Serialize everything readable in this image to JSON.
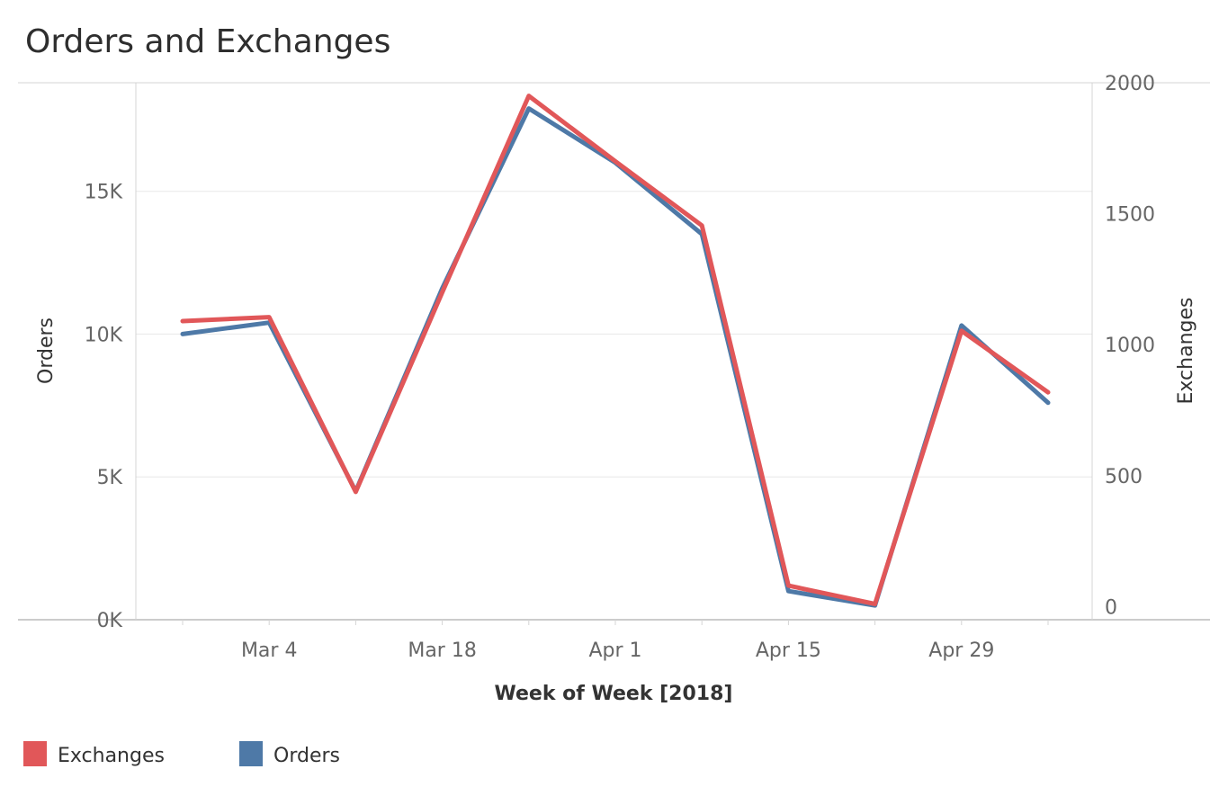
{
  "chart_data": {
    "type": "line",
    "title": "Orders and Exchanges",
    "xlabel": "Week of Week [2018]",
    "ylabel_left": "Orders",
    "ylabel_right": "Exchanges",
    "x": [
      "2018-02-25",
      "2018-03-04",
      "2018-03-11",
      "2018-03-18",
      "2018-03-25",
      "2018-04-01",
      "2018-04-08",
      "2018-04-15",
      "2018-04-22",
      "2018-04-29",
      "2018-05-06"
    ],
    "x_ticks": [
      {
        "date": "2018-03-04",
        "label": "Mar 4"
      },
      {
        "date": "2018-03-18",
        "label": "Mar 18"
      },
      {
        "date": "2018-04-01",
        "label": "Apr 1"
      },
      {
        "date": "2018-04-15",
        "label": "Apr 15"
      },
      {
        "date": "2018-04-29",
        "label": "Apr 29"
      }
    ],
    "y_left": {
      "range": [
        0,
        18800
      ],
      "ticks": [
        {
          "value": 0,
          "label": "0K"
        },
        {
          "value": 5000,
          "label": "5K"
        },
        {
          "value": 10000,
          "label": "10K"
        },
        {
          "value": 15000,
          "label": "15K"
        }
      ]
    },
    "y_right": {
      "range": [
        -50,
        2000
      ],
      "ticks": [
        {
          "value": 0,
          "label": "0"
        },
        {
          "value": 500,
          "label": "500"
        },
        {
          "value": 1000,
          "label": "1000"
        },
        {
          "value": 1500,
          "label": "1500"
        },
        {
          "value": 2000,
          "label": "2000"
        }
      ]
    },
    "grid": true,
    "legend_position": "bottom-left",
    "series": [
      {
        "name": "Orders",
        "axis": "left",
        "color": "#4e79a7",
        "values": [
          10000,
          10400,
          4500,
          11600,
          17900,
          16000,
          13500,
          1000,
          500,
          10300,
          7600
        ]
      },
      {
        "name": "Exchanges",
        "axis": "right",
        "color": "#e15759",
        "values": [
          1090,
          1105,
          438,
          1200,
          1950,
          1700,
          1455,
          80,
          10,
          1053,
          818
        ]
      }
    ],
    "legend": [
      {
        "name": "Exchanges",
        "color": "#e15759"
      },
      {
        "name": "Orders",
        "color": "#4e79a7"
      }
    ]
  }
}
